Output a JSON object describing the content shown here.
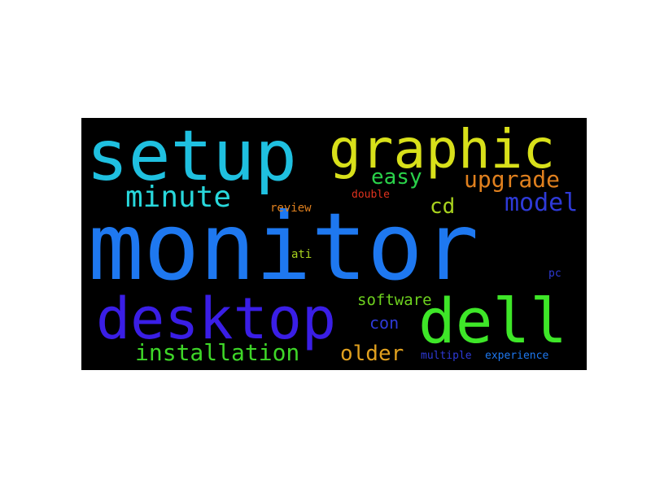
{
  "words": {
    "setup": {
      "text": "setup",
      "color": "#1fc0e0"
    },
    "graphic": {
      "text": "graphic",
      "color": "#d8e01a"
    },
    "monitor": {
      "text": "monitor",
      "color": "#1e78f0"
    },
    "desktop": {
      "text": "desktop",
      "color": "#3a1ee6"
    },
    "dell": {
      "text": "dell",
      "color": "#3ee628"
    },
    "minute": {
      "text": "minute",
      "color": "#28d8dc"
    },
    "easy": {
      "text": "easy",
      "color": "#2ad24a"
    },
    "upgrade": {
      "text": "upgrade",
      "color": "#e0801e"
    },
    "cd": {
      "text": "cd",
      "color": "#a8d21e"
    },
    "model": {
      "text": "model",
      "color": "#2e3ad8"
    },
    "double": {
      "text": "double",
      "color": "#e0321e"
    },
    "review": {
      "text": "review",
      "color": "#e0801e"
    },
    "ati": {
      "text": "ati",
      "color": "#a8d21e"
    },
    "pc": {
      "text": "pc",
      "color": "#2e3ad8"
    },
    "software": {
      "text": "software",
      "color": "#6ed21e"
    },
    "con": {
      "text": "con",
      "color": "#2e3ad8"
    },
    "installation": {
      "text": "installation",
      "color": "#3ed628"
    },
    "older": {
      "text": "older",
      "color": "#e0a01e"
    },
    "multiple": {
      "text": "multiple",
      "color": "#2e3ad8"
    },
    "experience": {
      "text": "experience",
      "color": "#1e78f0"
    }
  }
}
